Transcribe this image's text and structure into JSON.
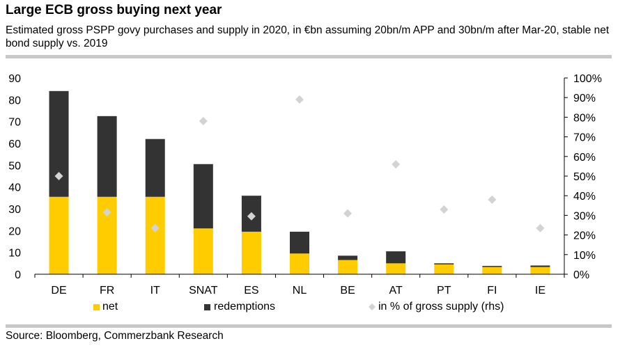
{
  "title": "Large ECB gross buying next year",
  "subtitle": "Estimated gross PSPP govy purchases and supply in 2020, in €bn assuming 20bn/m APP and 30bn/m after Mar-20, stable net bond supply vs. 2019",
  "source": "Source: Bloomberg, Commerzbank Research",
  "colors": {
    "net": "#FFCC00",
    "redemptions": "#333333",
    "pct": "#D3D3D3",
    "rule": "#C8C8C8"
  },
  "chart_data": {
    "type": "bar",
    "stacked": true,
    "categories": [
      "DE",
      "FR",
      "IT",
      "SNAT",
      "ES",
      "NL",
      "BE",
      "AT",
      "PT",
      "FI",
      "IE"
    ],
    "series": [
      {
        "name": "net",
        "values": [
          35.5,
          35.5,
          35.5,
          21,
          19.5,
          9.5,
          6.5,
          5,
          4.5,
          3.3,
          3.3
        ]
      },
      {
        "name": "redemptions",
        "values": [
          48.5,
          37,
          26.5,
          29.5,
          16.5,
          10,
          2,
          5.5,
          0.5,
          0.5,
          0.7
        ]
      },
      {
        "name": "in % of gross supply (rhs)",
        "axis": "right",
        "marker": "diamond",
        "values": [
          50,
          31.5,
          23.5,
          78,
          29.5,
          89,
          31,
          56,
          33,
          38,
          23.5
        ]
      }
    ],
    "left_axis": {
      "min": 0,
      "max": 90,
      "ticks": [
        "0",
        "10",
        "20",
        "30",
        "40",
        "50",
        "60",
        "70",
        "80",
        "90"
      ]
    },
    "right_axis": {
      "min": 0,
      "max": 100,
      "ticks": [
        "0%",
        "10%",
        "20%",
        "30%",
        "40%",
        "50%",
        "60%",
        "70%",
        "80%",
        "90%",
        "100%"
      ]
    },
    "legend": [
      "net",
      "redemptions",
      "in % of gross supply (rhs)"
    ],
    "legend_position": "bottom",
    "grid": false
  }
}
